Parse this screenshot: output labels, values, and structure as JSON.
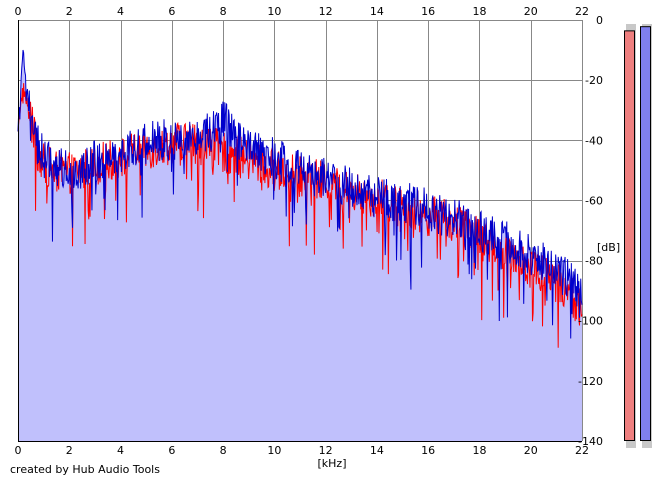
{
  "chart_data": {
    "type": "area",
    "xlabel": "[kHz]",
    "ylabel": "[dB]",
    "xlim": [
      0,
      22
    ],
    "ylim": [
      -140,
      0
    ],
    "x_ticks": [
      0,
      2,
      4,
      6,
      8,
      10,
      12,
      14,
      16,
      18,
      20,
      22
    ],
    "y_ticks": [
      0,
      -20,
      -40,
      -60,
      -80,
      -100,
      -120,
      -140
    ],
    "grid": true,
    "series": [
      {
        "color": "#ff0000",
        "x": [
          0.0,
          0.1,
          0.2,
          0.3,
          0.5,
          0.7,
          1.0,
          1.5,
          2.0,
          2.5,
          3.0,
          3.5,
          4.0,
          4.5,
          5.0,
          5.5,
          6.0,
          6.5,
          7.0,
          7.5,
          8.0,
          8.5,
          9.0,
          9.5,
          10.0,
          10.5,
          11.0,
          11.5,
          12.0,
          12.5,
          13.0,
          13.5,
          14.0,
          14.5,
          15.0,
          15.5,
          16.0,
          16.5,
          17.0,
          17.5,
          18.0,
          18.5,
          19.0,
          19.5,
          20.0,
          20.5,
          21.0,
          21.5,
          22.0
        ],
        "values": [
          -38,
          -28,
          -22,
          -26,
          -33,
          -42,
          -48,
          -50,
          -51,
          -50,
          -48,
          -47,
          -46,
          -44,
          -43,
          -42,
          -41,
          -40,
          -41,
          -42,
          -44,
          -45,
          -47,
          -48,
          -50,
          -51,
          -52,
          -53,
          -54,
          -56,
          -57,
          -58,
          -59,
          -61,
          -62,
          -63,
          -65,
          -66,
          -68,
          -70,
          -72,
          -74,
          -77,
          -79,
          -82,
          -85,
          -87,
          -91,
          -96
        ]
      },
      {
        "color": "#0000cc",
        "x": [
          0.0,
          0.1,
          0.2,
          0.3,
          0.5,
          0.7,
          1.0,
          1.5,
          2.0,
          2.5,
          3.0,
          3.5,
          4.0,
          4.5,
          5.0,
          5.5,
          6.0,
          6.5,
          7.0,
          7.5,
          8.0,
          8.5,
          9.0,
          9.5,
          10.0,
          10.5,
          11.0,
          11.5,
          12.0,
          12.5,
          13.0,
          13.5,
          14.0,
          14.5,
          15.0,
          15.5,
          16.0,
          16.5,
          17.0,
          17.5,
          18.0,
          18.5,
          19.0,
          19.5,
          20.0,
          20.5,
          21.0,
          21.5,
          22.0
        ],
        "values": [
          -35,
          -24,
          -11,
          -20,
          -30,
          -40,
          -46,
          -49,
          -50,
          -49,
          -47,
          -46,
          -44,
          -42,
          -41,
          -40,
          -40,
          -39,
          -38,
          -37,
          -33,
          -40,
          -43,
          -45,
          -46,
          -48,
          -50,
          -52,
          -52,
          -54,
          -56,
          -57,
          -58,
          -60,
          -60,
          -62,
          -63,
          -65,
          -66,
          -68,
          -70,
          -72,
          -73,
          -76,
          -78,
          -80,
          -83,
          -86,
          -90
        ]
      }
    ]
  },
  "meters": [
    {
      "color": "#ee7f7f",
      "level": 0.98
    },
    {
      "color": "#7f7fee",
      "level": 0.99
    }
  ],
  "credit": "created by Hub Audio Tools"
}
